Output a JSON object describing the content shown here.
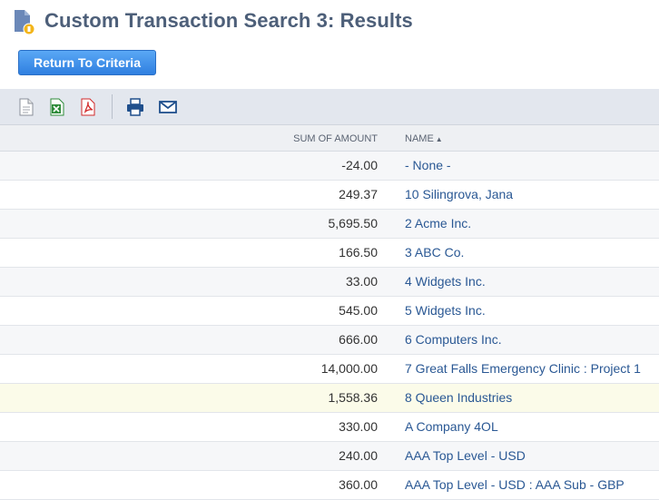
{
  "header": {
    "title": "Custom Transaction Search 3: Results"
  },
  "actions": {
    "return_label": "Return To Criteria"
  },
  "toolbar": {
    "icons": [
      "export-csv-icon",
      "export-excel-icon",
      "export-pdf-icon",
      "print-icon",
      "email-icon"
    ]
  },
  "table": {
    "columns": {
      "amount": "SUM OF AMOUNT",
      "name": "NAME"
    },
    "sort_indicator": "▲",
    "rows": [
      {
        "amount": "-24.00",
        "name": "- None -"
      },
      {
        "amount": "249.37",
        "name": "10 Silingrova, Jana"
      },
      {
        "amount": "5,695.50",
        "name": "2 Acme Inc."
      },
      {
        "amount": "166.50",
        "name": "3 ABC Co."
      },
      {
        "amount": "33.00",
        "name": "4 Widgets Inc."
      },
      {
        "amount": "545.00",
        "name": "5 Widgets Inc."
      },
      {
        "amount": "666.00",
        "name": "6 Computers Inc."
      },
      {
        "amount": "14,000.00",
        "name": "7 Great Falls Emergency Clinic : Project 1"
      },
      {
        "amount": "1,558.36",
        "name": "8 Queen Industries"
      },
      {
        "amount": "330.00",
        "name": "A Company 4OL"
      },
      {
        "amount": "240.00",
        "name": "AAA Top Level - USD"
      },
      {
        "amount": "360.00",
        "name": "AAA Top Level - USD : AAA Sub - GBP"
      }
    ]
  },
  "colors": {
    "title": "#4d5f79",
    "link": "#2a5894",
    "button": "#2f7fe0",
    "highlight_row": "#fbfbe9"
  }
}
